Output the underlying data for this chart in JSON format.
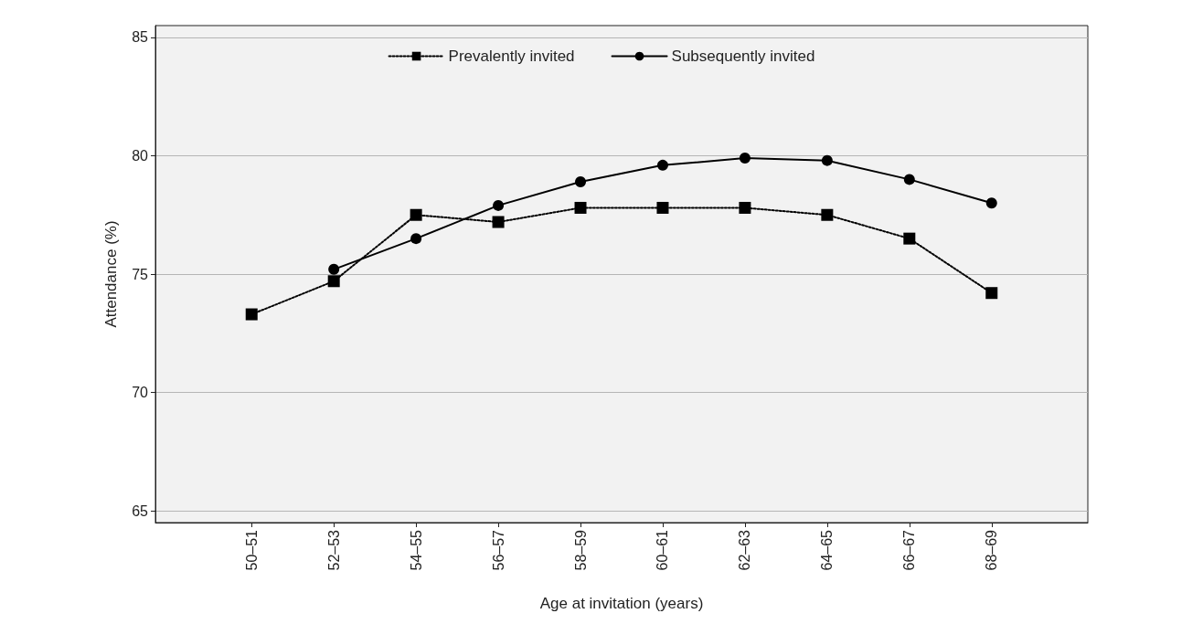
{
  "chart_data": {
    "type": "line",
    "xlabel": "Age at invitation (years)",
    "ylabel": "Attendance (%)",
    "categories": [
      "50–51",
      "52–53",
      "54–55",
      "56–57",
      "58–59",
      "60–61",
      "62–63",
      "64–65",
      "66–67",
      "68–69"
    ],
    "series": [
      {
        "name": "Prevalently invited",
        "color": "#000000",
        "marker": "square",
        "line_style": "dotted",
        "values": [
          73.3,
          74.7,
          77.5,
          77.2,
          77.8,
          77.8,
          77.8,
          77.5,
          76.5,
          74.2
        ]
      },
      {
        "name": "Subsequently invited",
        "color": "#000000",
        "marker": "circle",
        "line_style": "solid",
        "values": [
          null,
          75.2,
          76.5,
          77.9,
          78.9,
          79.6,
          79.9,
          79.8,
          79.0,
          78.0
        ]
      }
    ],
    "ylim": [
      64.5,
      85.5
    ],
    "yticks": [
      65,
      70,
      75,
      80,
      85
    ],
    "grid": "y",
    "legend": "top"
  }
}
